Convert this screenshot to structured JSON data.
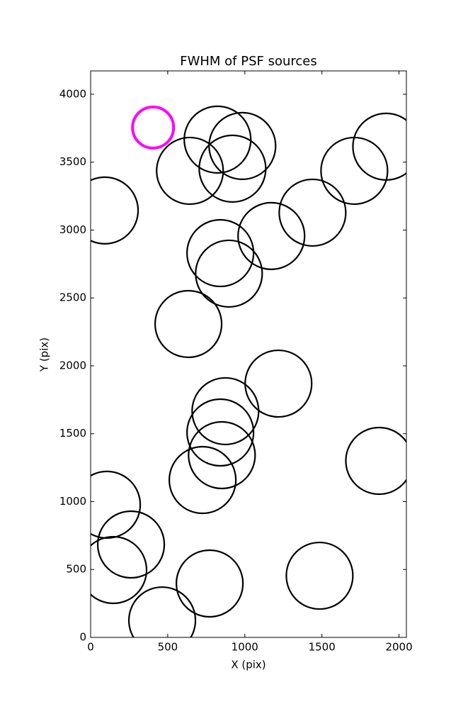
{
  "chart_data": {
    "type": "scatter",
    "title": "FWHM of PSF sources",
    "x_label": "X (pix)",
    "y_label": "Y (pix)",
    "xlim": [
      0,
      2048
    ],
    "ylim": [
      0,
      4172
    ],
    "xticks": [
      0,
      500,
      1000,
      1500,
      2000
    ],
    "yticks": [
      0,
      500,
      1000,
      1500,
      2000,
      2500,
      3000,
      3500,
      4000
    ],
    "grid": false,
    "series": [
      {
        "color": "#000000",
        "x": [
          823,
          984,
          644,
          920,
          1917,
          1710,
          92,
          1439,
          1172,
          841,
          897,
          634,
          1218,
          874,
          841,
          851,
          726,
          1871,
          106,
          262,
          147,
          772,
          1485,
          464
        ],
        "values": [
          3666,
          3619,
          3436,
          3452,
          3614,
          3436,
          3144,
          3128,
          2956,
          2830,
          2679,
          2308,
          1869,
          1666,
          1509,
          1342,
          1159,
          1300,
          977,
          684,
          496,
          397,
          454,
          125
        ]
      },
      {
        "color": "#ff00ff",
        "x": [
          405
        ],
        "values": [
          3755
        ]
      }
    ]
  }
}
